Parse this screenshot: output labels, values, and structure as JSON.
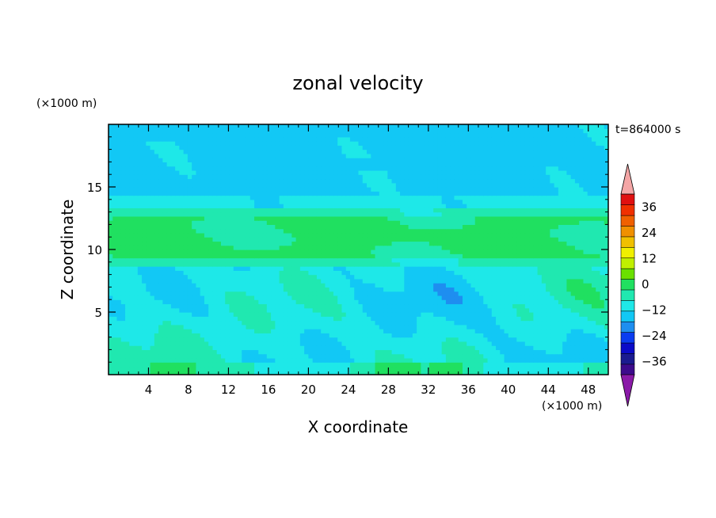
{
  "chart_data": {
    "type": "heatmap",
    "title": "zonal velocity",
    "xlabel": "X coordinate",
    "ylabel": "Z coordinate",
    "x_unit": "(×1000 m)",
    "y_unit": "(×1000 m)",
    "time_label": "t=864000 s",
    "xlim": [
      0,
      50
    ],
    "ylim": [
      0,
      20
    ],
    "x_ticks": [
      4,
      8,
      12,
      16,
      20,
      24,
      28,
      32,
      36,
      40,
      44,
      48
    ],
    "y_ticks": [
      5,
      10,
      15
    ],
    "colorbar": {
      "min": -42,
      "max": 42,
      "step": 6,
      "tick_values": [
        36,
        24,
        12,
        0,
        -12,
        -24,
        -36
      ],
      "tick_labels": [
        "36",
        "24",
        "12",
        "0",
        "−12",
        "−24",
        "−36"
      ],
      "over_color": "#f4a6a6",
      "under_color": "#8a1aa8",
      "colors": [
        "#3d0b8c",
        "#1b1b90",
        "#0b0bc8",
        "#0a3cf0",
        "#1e8ef0",
        "#12c8f5",
        "#1ee8e8",
        "#20e8b0",
        "#20e060",
        "#6ae000",
        "#c0f000",
        "#f0f000",
        "#f0c000",
        "#f09000",
        "#f06000",
        "#f03000",
        "#e01010"
      ]
    },
    "field_description_bands": [
      {
        "z_range": [
          0,
          1.2
        ],
        "value_range": [
          -4,
          10
        ]
      },
      {
        "z_range": [
          1.2,
          8.5
        ],
        "value_range": [
          -10,
          8
        ]
      },
      {
        "z_range": [
          8.5,
          13.0
        ],
        "value_range": [
          6,
          10
        ]
      },
      {
        "z_range": [
          13.0,
          20.0
        ],
        "value_range": [
          -12,
          -4
        ]
      }
    ]
  }
}
